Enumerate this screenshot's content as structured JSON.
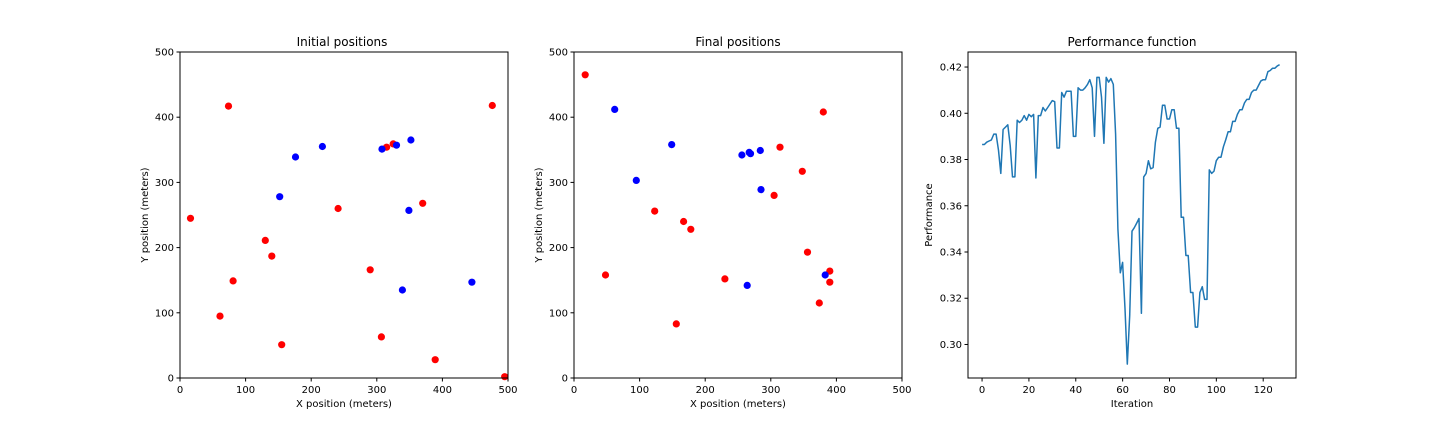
{
  "chart_data": [
    {
      "type": "scatter",
      "title": "Initial positions",
      "xlabel": "X position (meters)",
      "ylabel": "Y position (meters)",
      "xlim": [
        0,
        500
      ],
      "ylim": [
        0,
        500
      ],
      "xticks": [
        0,
        100,
        200,
        300,
        400,
        500
      ],
      "yticks": [
        0,
        100,
        200,
        300,
        400,
        500
      ],
      "grid": false,
      "series": [
        {
          "color": "#ff0000",
          "points": [
            [
              16,
              245
            ],
            [
              74,
              417
            ],
            [
              81,
              149
            ],
            [
              61,
              95
            ],
            [
              130,
              211
            ],
            [
              140,
              187
            ],
            [
              155,
              51
            ],
            [
              241,
              260
            ],
            [
              290,
              166
            ],
            [
              307,
              63
            ],
            [
              315,
              354
            ],
            [
              325,
              359
            ],
            [
              370,
              268
            ],
            [
              389,
              28
            ],
            [
              476,
              418
            ],
            [
              495,
              2
            ]
          ]
        },
        {
          "color": "#0000ff",
          "points": [
            [
              152,
              278
            ],
            [
              176,
              339
            ],
            [
              217,
              355
            ],
            [
              308,
              351
            ],
            [
              330,
              357
            ],
            [
              352,
              365
            ],
            [
              349,
              257
            ],
            [
              339,
              135
            ],
            [
              445,
              147
            ]
          ]
        }
      ]
    },
    {
      "type": "scatter",
      "title": "Final positions",
      "xlabel": "X position (meters)",
      "ylabel": "Y position (meters)",
      "xlim": [
        0,
        500
      ],
      "ylim": [
        0,
        500
      ],
      "xticks": [
        0,
        100,
        200,
        300,
        400,
        500
      ],
      "yticks": [
        0,
        100,
        200,
        300,
        400,
        500
      ],
      "grid": false,
      "series": [
        {
          "color": "#ff0000",
          "points": [
            [
              17,
              465
            ],
            [
              48,
              158
            ],
            [
              123,
              256
            ],
            [
              156,
              83
            ],
            [
              167,
              240
            ],
            [
              178,
              228
            ],
            [
              230,
              152
            ],
            [
              305,
              280
            ],
            [
              314,
              354
            ],
            [
              348,
              317
            ],
            [
              356,
              193
            ],
            [
              380,
              408
            ],
            [
              374,
              115
            ],
            [
              390,
              164
            ],
            [
              390,
              147
            ]
          ]
        },
        {
          "color": "#0000ff",
          "points": [
            [
              62,
              412
            ],
            [
              95,
              303
            ],
            [
              149,
              358
            ],
            [
              256,
              342
            ],
            [
              267,
              346
            ],
            [
              269,
              344
            ],
            [
              284,
              349
            ],
            [
              285,
              289
            ],
            [
              264,
              142
            ],
            [
              383,
              158
            ]
          ]
        }
      ]
    },
    {
      "type": "line",
      "title": "Performance function",
      "xlabel": "Iteration",
      "ylabel": "Performance",
      "xlim": [
        -6,
        134
      ],
      "ylim": [
        0.2855,
        0.4265
      ],
      "xticks": [
        0,
        20,
        40,
        60,
        80,
        100,
        120
      ],
      "yticks": [
        "0.30",
        "0.32",
        "0.34",
        "0.36",
        "0.38",
        "0.40",
        "0.42"
      ],
      "grid": false,
      "series": [
        {
          "color": "#1f77b4",
          "x": [
            0,
            1,
            2,
            3,
            4,
            5,
            6,
            7,
            8,
            9,
            10,
            11,
            12,
            13,
            14,
            15,
            16,
            17,
            18,
            19,
            20,
            21,
            22,
            23,
            24,
            25,
            26,
            27,
            28,
            29,
            30,
            31,
            32,
            33,
            34,
            35,
            36,
            37,
            38,
            39,
            40,
            41,
            42,
            43,
            44,
            45,
            46,
            47,
            48,
            49,
            50,
            51,
            52,
            53,
            54,
            55,
            56,
            57,
            58,
            59,
            60,
            61,
            62,
            63,
            64,
            65,
            66,
            67,
            68,
            69,
            70,
            71,
            72,
            73,
            74,
            75,
            76,
            77,
            78,
            79,
            80,
            81,
            82,
            83,
            84,
            85,
            86,
            87,
            88,
            89,
            90,
            91,
            92,
            93,
            94,
            95,
            96,
            97,
            98,
            99,
            100,
            101,
            102,
            103,
            104,
            105,
            106,
            107,
            108,
            109,
            110,
            111,
            112,
            113,
            114,
            115,
            116,
            117,
            118,
            119,
            120,
            121,
            122,
            123,
            124,
            125,
            126,
            127
          ],
          "y": [
            0.3865,
            0.3865,
            0.3875,
            0.388,
            0.3885,
            0.391,
            0.391,
            0.384,
            0.374,
            0.393,
            0.394,
            0.395,
            0.386,
            0.3725,
            0.3725,
            0.397,
            0.396,
            0.397,
            0.399,
            0.397,
            0.3995,
            0.3985,
            0.3995,
            0.372,
            0.399,
            0.399,
            0.4025,
            0.401,
            0.4025,
            0.404,
            0.4055,
            0.405,
            0.385,
            0.385,
            0.409,
            0.407,
            0.4095,
            0.4095,
            0.4095,
            0.39,
            0.39,
            0.411,
            0.41,
            0.41,
            0.411,
            0.4125,
            0.4145,
            0.411,
            0.39,
            0.4155,
            0.4155,
            0.407,
            0.387,
            0.4155,
            0.4135,
            0.415,
            0.4125,
            0.391,
            0.35,
            0.331,
            0.3355,
            0.3155,
            0.2915,
            0.3125,
            0.349,
            0.3505,
            0.3525,
            0.3545,
            0.3135,
            0.3725,
            0.374,
            0.3795,
            0.376,
            0.3765,
            0.3875,
            0.3935,
            0.394,
            0.4035,
            0.4035,
            0.3975,
            0.3975,
            0.4015,
            0.4015,
            0.3935,
            0.3935,
            0.355,
            0.355,
            0.3385,
            0.3385,
            0.3225,
            0.3225,
            0.3075,
            0.3075,
            0.3225,
            0.325,
            0.3195,
            0.3195,
            0.3755,
            0.374,
            0.375,
            0.3795,
            0.381,
            0.381,
            0.3855,
            0.3885,
            0.392,
            0.392,
            0.3965,
            0.3965,
            0.3995,
            0.4015,
            0.4015,
            0.4045,
            0.406,
            0.406,
            0.409,
            0.41,
            0.41,
            0.412,
            0.414,
            0.4145,
            0.4145,
            0.418,
            0.4185,
            0.4195,
            0.4195,
            0.4205,
            0.421
          ]
        }
      ]
    }
  ]
}
